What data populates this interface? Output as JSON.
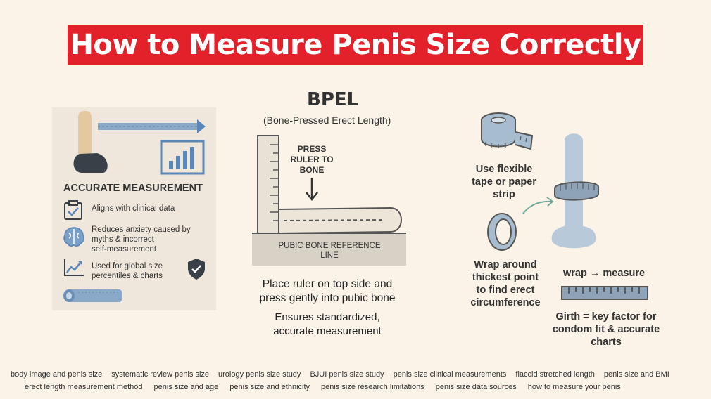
{
  "title": "How to Measure Penis Size Correctly",
  "left_card": {
    "heading": "ACCURATE MEASUREMENT",
    "items": [
      {
        "icon": "clipboard-check-icon",
        "text": "Aligns with clinical data"
      },
      {
        "icon": "brain-icon",
        "text": "Reduces anxiety caused by\nmyths & incorrect\nself-measurement"
      },
      {
        "icon": "trend-chart-icon",
        "text": "Used for global size\npercentiles & charts"
      }
    ],
    "shield_icon": "shield-check-icon",
    "colors": {
      "accent": "#5b86b5",
      "dark": "#3a4048",
      "tan": "#e6c8a0"
    }
  },
  "bpel": {
    "title": "BPEL",
    "subtitle": "(Bone-Pressed Erect Length)",
    "press_label": "PRESS\nRULER TO\nBONE",
    "pubic_label": "PUBIC BONE REFERENCE\nLINE",
    "instruction": "Place ruler on top side and\npress gently into pubic bone",
    "note": "Ensures standardized,\naccurate measurement"
  },
  "girth": {
    "tape_caption": "Use flexible\ntape or paper\nstrip",
    "wrap_caption": "Wrap around\nthickest point\nto find erect\ncircumference",
    "wrap_measure": "wrap → measure",
    "girth_note": "Girth = key factor for\ncondom fit & accurate\ncharts",
    "colors": {
      "model": "#b8c9d9",
      "tape": "#8fa3b8"
    }
  },
  "footer": {
    "row1": [
      "body image and penis size",
      "systematic review penis size",
      "urology penis size study",
      "BJUI penis size study",
      "penis size clinical measurements",
      "flaccid stretched length",
      "penis size and BMI"
    ],
    "row2": [
      "erect length measurement method",
      "penis size and age",
      "penis size and ethnicity",
      "penis size research limitations",
      "penis size data sources",
      "how to measure your penis"
    ]
  }
}
